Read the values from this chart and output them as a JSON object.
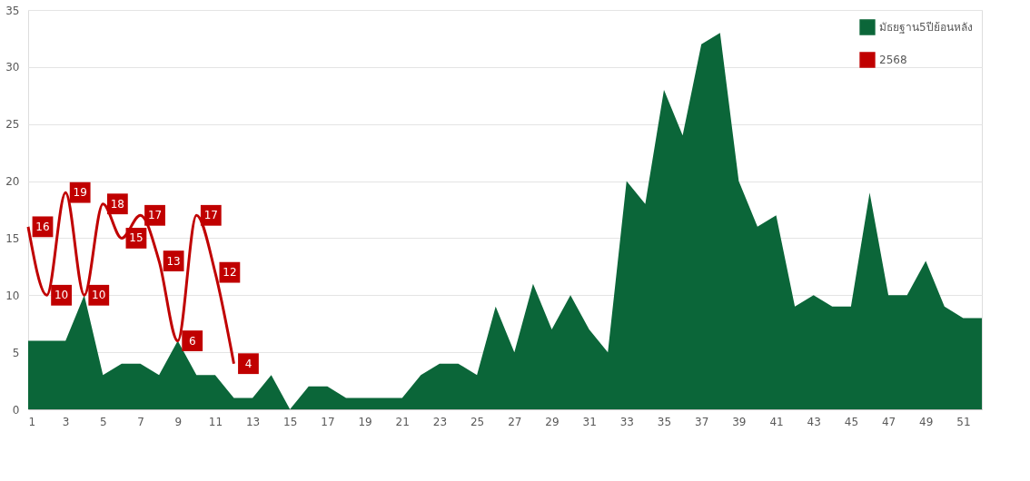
{
  "chart_data": {
    "type": "area",
    "x": [
      1,
      2,
      3,
      4,
      5,
      6,
      7,
      8,
      9,
      10,
      11,
      12,
      13,
      14,
      15,
      16,
      17,
      18,
      19,
      20,
      21,
      22,
      23,
      24,
      25,
      26,
      27,
      28,
      29,
      30,
      31,
      32,
      33,
      34,
      35,
      36,
      37,
      38,
      39,
      40,
      41,
      42,
      43,
      44,
      45,
      46,
      47,
      48,
      49,
      50,
      51,
      52
    ],
    "series": [
      {
        "name": "มัธยฐาน5ปีย้อนหลัง",
        "color": "#0b6639",
        "values": [
          6,
          6,
          6,
          10,
          3,
          4,
          4,
          3,
          6,
          3,
          3,
          1,
          1,
          3,
          0,
          2,
          2,
          1,
          1,
          1,
          1,
          3,
          4,
          4,
          3,
          9,
          5,
          11,
          7,
          10,
          7,
          5,
          20,
          18,
          28,
          24,
          32,
          33,
          20,
          16,
          17,
          9,
          10,
          9,
          9,
          19,
          10,
          10,
          13,
          9,
          8,
          8
        ]
      },
      {
        "name": "2568",
        "type": "line",
        "color": "#c00000",
        "data_labels": true,
        "x": [
          1,
          2,
          3,
          4,
          5,
          6,
          7,
          8,
          9,
          10,
          11,
          12
        ],
        "values": [
          16,
          10,
          19,
          10,
          18,
          15,
          17,
          13,
          6,
          17,
          12,
          4
        ]
      }
    ],
    "xlim": [
      1,
      52
    ],
    "xticks": [
      1,
      3,
      5,
      7,
      9,
      11,
      13,
      15,
      17,
      19,
      21,
      23,
      25,
      27,
      29,
      31,
      33,
      35,
      37,
      39,
      41,
      43,
      45,
      47,
      49,
      51
    ],
    "ylim": [
      0,
      35
    ],
    "yticks": [
      0,
      5,
      10,
      15,
      20,
      25,
      30,
      35
    ],
    "grid": "y",
    "legend": "top right",
    "marker": "none",
    "line_style": "solid"
  }
}
